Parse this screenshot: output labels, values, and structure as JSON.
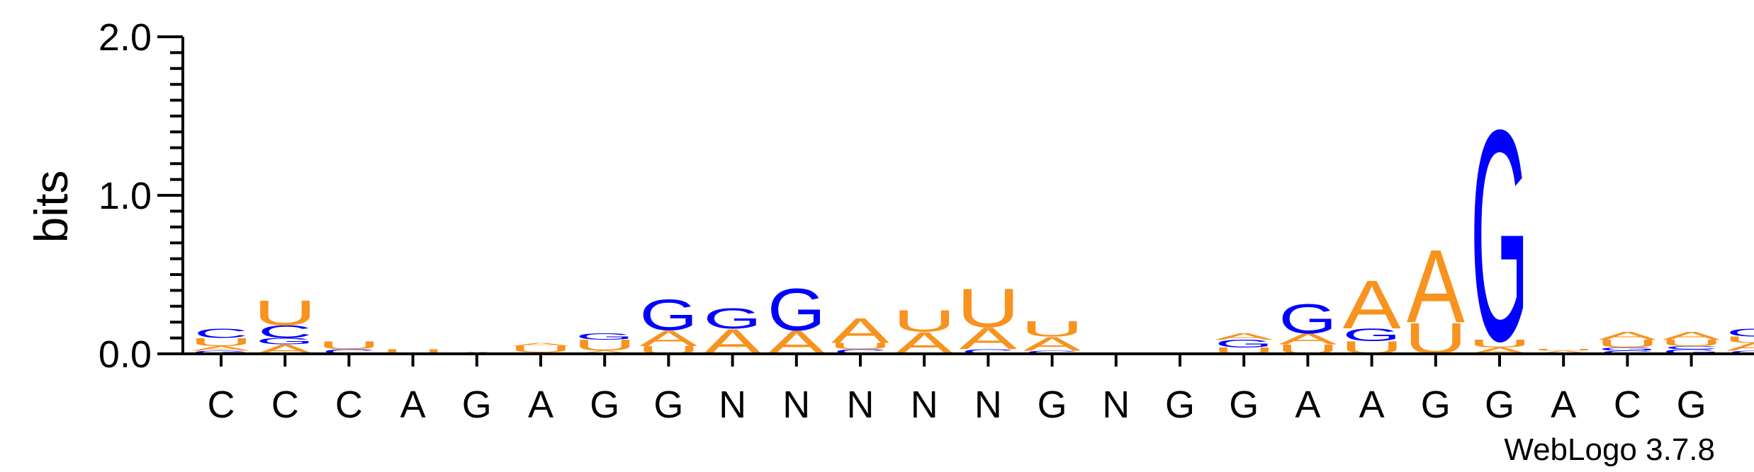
{
  "chart_data": {
    "type": "sequence-logo",
    "ylabel": "bits",
    "ylim": [
      0,
      2.0
    ],
    "yticks": [
      "0.0",
      "1.0",
      "2.0"
    ],
    "credit": "WebLogo 3.7.8",
    "colors": {
      "A": "#f7931e",
      "U": "#f7931e",
      "G": "#0000ff",
      "C": "#0000ff"
    },
    "positions": [
      {
        "label": "C",
        "stack": [
          {
            "letter": "G",
            "height": 0.02
          },
          {
            "letter": "A",
            "height": 0.03
          },
          {
            "letter": "U",
            "height": 0.05
          },
          {
            "letter": "C",
            "height": 0.06
          }
        ]
      },
      {
        "label": "C",
        "stack": [
          {
            "letter": "A",
            "height": 0.06
          },
          {
            "letter": "G",
            "height": 0.04
          },
          {
            "letter": "C",
            "height": 0.08
          },
          {
            "letter": "U",
            "height": 0.16
          }
        ]
      },
      {
        "label": "C",
        "stack": [
          {
            "letter": "C",
            "height": 0.03
          },
          {
            "letter": "U",
            "height": 0.05
          }
        ]
      },
      {
        "label": "A",
        "stack": [
          {
            "letter": "U",
            "height": 0.03
          }
        ]
      },
      {
        "label": "G",
        "stack": [
          {
            "letter": "A",
            "height": 0.015
          }
        ]
      },
      {
        "label": "A",
        "stack": [
          {
            "letter": "C",
            "height": 0.01
          },
          {
            "letter": "U",
            "height": 0.04
          },
          {
            "letter": "A",
            "height": 0.02
          }
        ]
      },
      {
        "label": "G",
        "stack": [
          {
            "letter": "A",
            "height": 0.02
          },
          {
            "letter": "U",
            "height": 0.07
          },
          {
            "letter": "G",
            "height": 0.04
          }
        ]
      },
      {
        "label": "G",
        "stack": [
          {
            "letter": "U",
            "height": 0.05
          },
          {
            "letter": "A",
            "height": 0.1
          },
          {
            "letter": "G",
            "height": 0.2
          }
        ]
      },
      {
        "label": "N",
        "stack": [
          {
            "letter": "A",
            "height": 0.16
          },
          {
            "letter": "G",
            "height": 0.13
          }
        ]
      },
      {
        "label": "N",
        "stack": [
          {
            "letter": "A",
            "height": 0.15
          },
          {
            "letter": "G",
            "height": 0.27
          }
        ]
      },
      {
        "label": "N",
        "stack": [
          {
            "letter": "C",
            "height": 0.03
          },
          {
            "letter": "U",
            "height": 0.04
          },
          {
            "letter": "A",
            "height": 0.16
          }
        ]
      },
      {
        "label": "N",
        "stack": [
          {
            "letter": "A",
            "height": 0.14
          },
          {
            "letter": "U",
            "height": 0.14
          }
        ]
      },
      {
        "label": "N",
        "stack": [
          {
            "letter": "C",
            "height": 0.03
          },
          {
            "letter": "A",
            "height": 0.14
          },
          {
            "letter": "U",
            "height": 0.25
          }
        ]
      },
      {
        "label": "G",
        "stack": [
          {
            "letter": "C",
            "height": 0.02
          },
          {
            "letter": "A",
            "height": 0.09
          },
          {
            "letter": "U",
            "height": 0.1
          }
        ]
      },
      {
        "label": "N",
        "stack": []
      },
      {
        "label": "G",
        "stack": []
      },
      {
        "label": "G",
        "stack": [
          {
            "letter": "U",
            "height": 0.04
          },
          {
            "letter": "G",
            "height": 0.05
          },
          {
            "letter": "A",
            "height": 0.04
          }
        ]
      },
      {
        "label": "A",
        "stack": [
          {
            "letter": "U",
            "height": 0.06
          },
          {
            "letter": "A",
            "height": 0.07
          },
          {
            "letter": "G",
            "height": 0.19
          }
        ]
      },
      {
        "label": "A",
        "stack": [
          {
            "letter": "U",
            "height": 0.08
          },
          {
            "letter": "G",
            "height": 0.08
          },
          {
            "letter": "A",
            "height": 0.31
          }
        ]
      },
      {
        "label": "G",
        "stack": [
          {
            "letter": "U",
            "height": 0.2
          },
          {
            "letter": "A",
            "height": 0.47
          }
        ]
      },
      {
        "label": "G",
        "stack": [
          {
            "letter": "A",
            "height": 0.04
          },
          {
            "letter": "U",
            "height": 0.05
          },
          {
            "letter": "G",
            "height": 1.36
          }
        ]
      },
      {
        "label": "A",
        "stack": [
          {
            "letter": "A",
            "height": 0.02
          },
          {
            "letter": "U",
            "height": 0.01
          }
        ]
      },
      {
        "label": "C",
        "stack": [
          {
            "letter": "C",
            "height": 0.02
          },
          {
            "letter": "G",
            "height": 0.02
          },
          {
            "letter": "U",
            "height": 0.05
          },
          {
            "letter": "A",
            "height": 0.05
          }
        ]
      },
      {
        "label": "G",
        "stack": [
          {
            "letter": "G",
            "height": 0.03
          },
          {
            "letter": "C",
            "height": 0.02
          },
          {
            "letter": "U",
            "height": 0.04
          },
          {
            "letter": "A",
            "height": 0.05
          }
        ]
      },
      {
        "label": "",
        "stack": [
          {
            "letter": "C",
            "height": 0.02
          },
          {
            "letter": "A",
            "height": 0.05
          },
          {
            "letter": "U",
            "height": 0.04
          },
          {
            "letter": "G",
            "height": 0.05
          }
        ]
      }
    ]
  }
}
